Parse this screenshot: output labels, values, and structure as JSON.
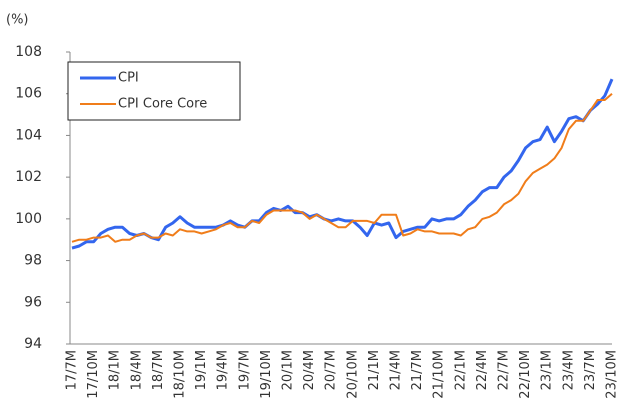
{
  "chart_data": {
    "type": "line",
    "y_unit": "(%)",
    "categories": [
      "17/7M",
      null,
      null,
      "17/10M",
      null,
      null,
      "18/1M",
      null,
      null,
      "18/4M",
      null,
      null,
      "18/7M",
      null,
      null,
      "18/10M",
      null,
      null,
      "19/1M",
      null,
      null,
      "19/4M",
      null,
      null,
      "19/7M",
      null,
      null,
      "19/10M",
      null,
      null,
      "20/1M",
      null,
      null,
      "20/4M",
      null,
      null,
      "20/7M",
      null,
      null,
      "20/10M",
      null,
      null,
      "21/1M",
      null,
      null,
      "21/4M",
      null,
      null,
      "21/7M",
      null,
      null,
      "21/10M",
      null,
      null,
      "22/1M",
      null,
      null,
      "22/4M",
      null,
      null,
      "22/7M",
      null,
      null,
      "22/10M",
      null,
      null,
      "23/1M",
      null,
      null,
      "23/4M",
      null,
      null,
      "23/7M",
      null,
      null,
      "23/10M"
    ],
    "series": [
      {
        "name": "CPI",
        "color": "#3366ee",
        "values": [
          98.6,
          98.7,
          98.9,
          98.9,
          99.3,
          99.5,
          99.6,
          99.6,
          99.3,
          99.2,
          99.3,
          99.1,
          99.0,
          99.6,
          99.8,
          100.1,
          99.8,
          99.6,
          99.6,
          99.6,
          99.6,
          99.7,
          99.9,
          99.7,
          99.6,
          99.9,
          99.9,
          100.3,
          100.5,
          100.4,
          100.6,
          100.3,
          100.3,
          100.1,
          100.2,
          100.0,
          99.9,
          100.0,
          99.9,
          99.9,
          99.6,
          99.2,
          99.8,
          99.7,
          99.8,
          99.1,
          99.4,
          99.5,
          99.6,
          99.6,
          100.0,
          99.9,
          100.0,
          100.0,
          100.2,
          100.6,
          100.9,
          101.3,
          101.5,
          101.5,
          102.0,
          102.3,
          102.8,
          103.4,
          103.7,
          103.8,
          104.4,
          103.7,
          104.2,
          104.8,
          104.9,
          104.7,
          105.2,
          105.5,
          105.9,
          106.7
        ]
      },
      {
        "name": "CPI Core Core",
        "color": "#f07d1a",
        "values": [
          98.9,
          99.0,
          99.0,
          99.1,
          99.1,
          99.2,
          98.9,
          99.0,
          99.0,
          99.2,
          99.3,
          99.1,
          99.1,
          99.3,
          99.2,
          99.5,
          99.4,
          99.4,
          99.3,
          99.4,
          99.5,
          99.7,
          99.8,
          99.6,
          99.6,
          99.9,
          99.8,
          100.2,
          100.4,
          100.4,
          100.4,
          100.4,
          100.3,
          100.0,
          100.2,
          100.0,
          99.8,
          99.6,
          99.6,
          99.9,
          99.9,
          99.9,
          99.8,
          100.2,
          100.2,
          100.2,
          99.2,
          99.3,
          99.5,
          99.4,
          99.4,
          99.3,
          99.3,
          99.3,
          99.2,
          99.5,
          99.6,
          100.0,
          100.1,
          100.3,
          100.7,
          100.9,
          101.2,
          101.8,
          102.2,
          102.4,
          102.6,
          102.9,
          103.4,
          104.3,
          104.7,
          104.7,
          105.2,
          105.7,
          105.7,
          106.0
        ]
      }
    ],
    "ylim": [
      94,
      108
    ],
    "yticks": [
      94,
      96,
      98,
      100,
      102,
      104,
      106,
      108
    ],
    "grid": false,
    "legend": "upper-left"
  }
}
